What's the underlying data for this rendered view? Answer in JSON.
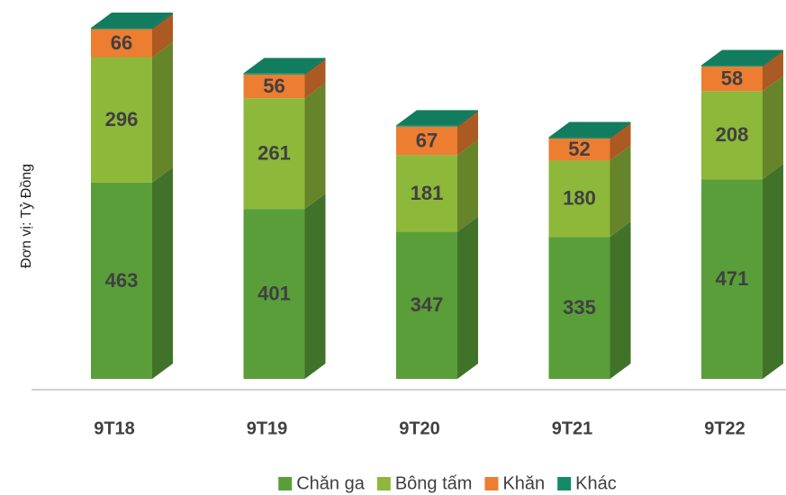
{
  "chart_data": {
    "type": "bar",
    "stacked": true,
    "three_d": true,
    "y_label": "Đơn vị: Tỷ Đồng",
    "categories": [
      "9T18",
      "9T19",
      "9T20",
      "9T21",
      "9T22"
    ],
    "series": [
      {
        "name": "Chăn ga",
        "color": "#5a9e3a",
        "values": [
          463,
          401,
          347,
          335,
          471
        ]
      },
      {
        "name": "Bông tấm",
        "color": "#8db83a",
        "values": [
          296,
          261,
          181,
          180,
          208
        ]
      },
      {
        "name": "Khăn",
        "color": "#ed7d31",
        "values": [
          66,
          56,
          67,
          52,
          58
        ]
      },
      {
        "name": "Khác",
        "color": "#148a6a",
        "values": [
          3,
          3,
          3,
          3,
          3
        ]
      }
    ]
  }
}
